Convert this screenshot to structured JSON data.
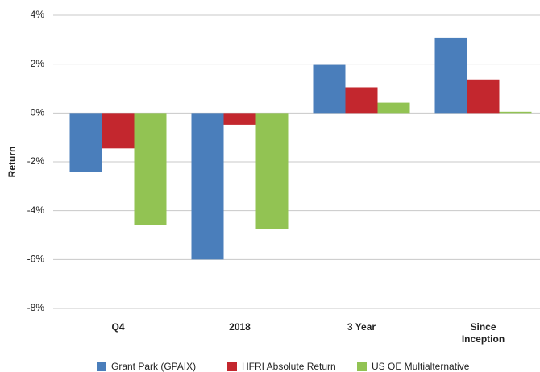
{
  "chart_data": {
    "type": "bar",
    "ylabel": "Return",
    "categories": [
      "Q4",
      "2018",
      "3 Year",
      "Since Inception"
    ],
    "series": [
      {
        "name": "Grant Park (GPAIX)",
        "color": "#4a7ebb",
        "values": [
          -2.4,
          -6.0,
          1.97,
          3.08
        ]
      },
      {
        "name": "HFRI Absolute Return",
        "color": "#c3272e",
        "values": [
          -1.45,
          -0.48,
          1.05,
          1.37
        ]
      },
      {
        "name": "US OE Multialternative",
        "color": "#92c353",
        "values": [
          -4.6,
          -4.75,
          0.42,
          0.05
        ]
      }
    ],
    "ylim": [
      -8,
      4
    ],
    "yticks": [
      {
        "value": -8,
        "label": "-8%"
      },
      {
        "value": -6,
        "label": "-6%"
      },
      {
        "value": -4,
        "label": "-4%"
      },
      {
        "value": -2,
        "label": "-2%"
      },
      {
        "value": 0,
        "label": "0%"
      },
      {
        "value": 2,
        "label": "2%"
      },
      {
        "value": 4,
        "label": "4%"
      }
    ],
    "grid": true,
    "legend": "bottom"
  }
}
